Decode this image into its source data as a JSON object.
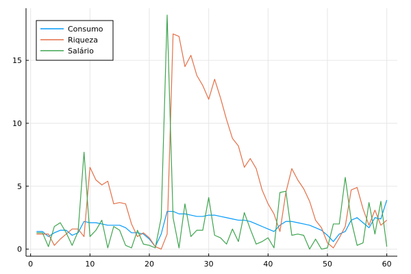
{
  "chart_data": {
    "type": "line",
    "x": [
      1,
      2,
      3,
      4,
      5,
      6,
      7,
      8,
      9,
      10,
      11,
      12,
      13,
      14,
      15,
      16,
      17,
      18,
      19,
      20,
      21,
      22,
      23,
      24,
      25,
      26,
      27,
      28,
      29,
      30,
      31,
      32,
      33,
      34,
      35,
      36,
      37,
      38,
      39,
      40,
      41,
      42,
      43,
      44,
      45,
      46,
      47,
      48,
      49,
      50,
      51,
      52,
      53,
      54,
      55,
      56,
      57,
      58,
      59,
      60
    ],
    "series": [
      {
        "name": "Consumo",
        "color": "#009AFA",
        "values": [
          1.4,
          1.4,
          1.0,
          1.3,
          1.5,
          1.5,
          1.1,
          1.3,
          2.2,
          2.1,
          2.1,
          2.0,
          1.9,
          1.9,
          1.9,
          1.7,
          1.3,
          1.3,
          1.2,
          0.8,
          0.2,
          1.2,
          3.0,
          3.0,
          2.8,
          2.8,
          2.7,
          2.6,
          2.6,
          2.7,
          2.7,
          2.6,
          2.5,
          2.4,
          2.3,
          2.3,
          2.2,
          2.0,
          1.8,
          1.6,
          1.4,
          1.9,
          2.2,
          2.2,
          2.1,
          2.0,
          1.9,
          1.7,
          1.5,
          1.1,
          0.6,
          1.2,
          1.4,
          2.3,
          2.5,
          2.1,
          1.7,
          2.5,
          2.4,
          3.9
        ]
      },
      {
        "name": "Riqueza",
        "color": "#E36F47",
        "values": [
          1.2,
          1.2,
          1.2,
          0.3,
          0.8,
          1.2,
          1.6,
          1.6,
          1.0,
          6.5,
          5.5,
          5.1,
          5.4,
          3.6,
          3.7,
          3.6,
          2.0,
          1.0,
          1.3,
          0.9,
          0.2,
          0.0,
          1.2,
          17.1,
          16.9,
          14.5,
          15.4,
          13.8,
          13.0,
          11.9,
          13.5,
          12.0,
          10.3,
          8.8,
          8.2,
          6.5,
          7.2,
          6.4,
          4.7,
          3.6,
          2.8,
          1.4,
          4.5,
          6.4,
          5.5,
          4.8,
          3.8,
          2.3,
          1.7,
          0.5,
          0.1,
          0.9,
          1.8,
          4.7,
          4.9,
          3.2,
          1.9,
          3.1,
          1.9,
          2.3
        ]
      },
      {
        "name": "Salário",
        "color": "#3EA44E",
        "values": [
          1.3,
          1.3,
          0.2,
          1.8,
          2.1,
          1.3,
          0.3,
          1.4,
          7.7,
          1.0,
          1.5,
          2.3,
          0.1,
          1.8,
          1.5,
          0.3,
          0.1,
          1.5,
          0.4,
          0.3,
          0.1,
          2.5,
          18.6,
          2.5,
          0.1,
          3.6,
          1.0,
          1.5,
          1.5,
          4.1,
          1.1,
          0.9,
          0.4,
          1.6,
          0.6,
          2.9,
          1.6,
          0.4,
          0.6,
          0.9,
          0.1,
          4.5,
          4.6,
          1.1,
          1.2,
          1.1,
          0.0,
          0.8,
          0.0,
          0.1,
          2.0,
          2.0,
          5.7,
          2.3,
          0.3,
          0.5,
          3.7,
          1.2,
          3.8,
          0.2
        ]
      }
    ],
    "xticks": [
      "0",
      "10",
      "20",
      "30",
      "40",
      "50",
      "60"
    ],
    "yticks": [
      "0",
      "5",
      "10",
      "15"
    ],
    "xlim": [
      -0.77,
      61.77
    ],
    "ylim": [
      -0.56,
      19.14
    ],
    "grid": true,
    "legend_position": "top-left",
    "title": "",
    "xlabel": "",
    "ylabel": ""
  }
}
